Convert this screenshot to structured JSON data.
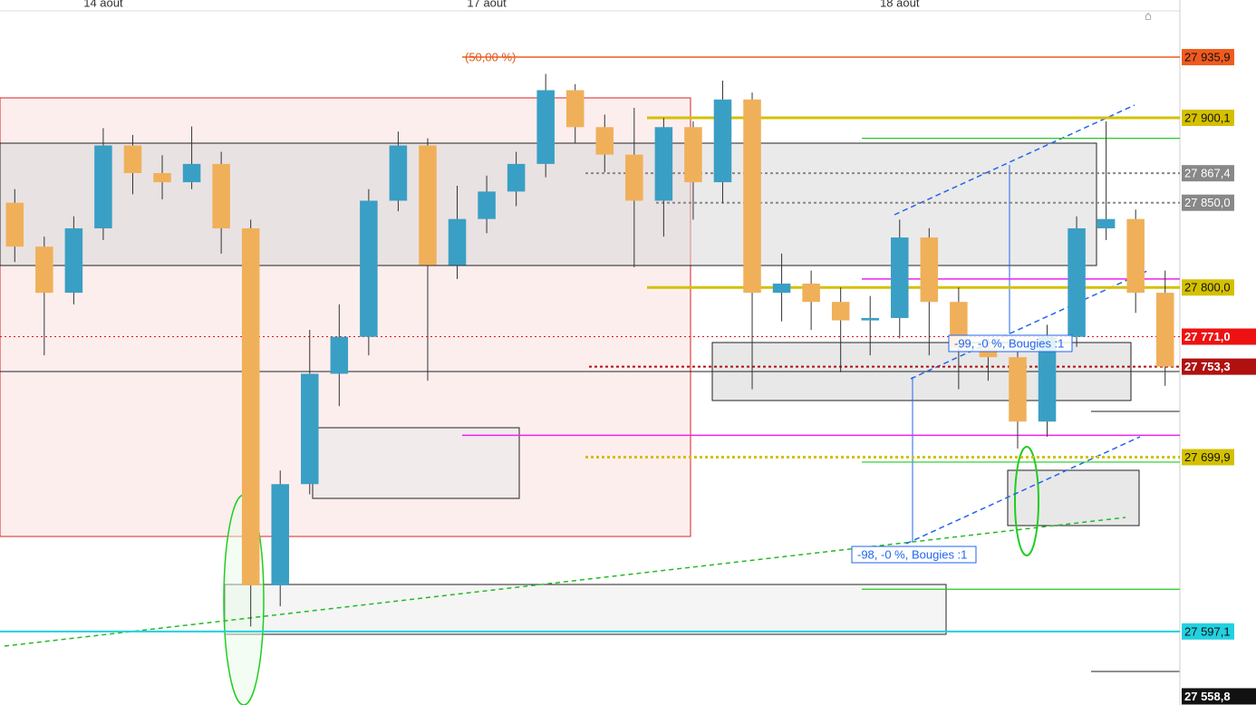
{
  "chart_data": {
    "type": "candlestick",
    "categories": [
      null,
      null,
      null,
      "14 août",
      null,
      null,
      null,
      null,
      null,
      null,
      null,
      null,
      null,
      null,
      null,
      null,
      "17 août",
      null,
      null,
      null,
      null,
      null,
      null,
      null,
      null,
      null,
      null,
      null,
      null,
      null,
      "18 août",
      null,
      null,
      null,
      null,
      null,
      null,
      null,
      null,
      null
    ],
    "ohlc": [
      [
        27850.0,
        27858,
        27815,
        27824.1
      ],
      [
        27824.1,
        27830,
        27760,
        27796.9
      ],
      [
        27796.9,
        27842,
        27790,
        27834.9
      ],
      [
        27834.9,
        27894,
        27828,
        27883.8
      ],
      [
        27883.8,
        27890,
        27855,
        27867.5
      ],
      [
        27867.5,
        27878,
        27852,
        27862.1
      ],
      [
        27862.1,
        27895,
        27858,
        27872.9
      ],
      [
        27872.9,
        27880,
        27820,
        27834.9
      ],
      [
        27834.9,
        27840,
        27600,
        27624.3
      ],
      [
        27624.3,
        27692,
        27612,
        27684.0
      ],
      [
        27684.0,
        27775,
        27678,
        27749.1
      ],
      [
        27749.1,
        27790,
        27730,
        27770.9
      ],
      [
        27770.9,
        27858,
        27760,
        27851.2
      ],
      [
        27851.2,
        27892,
        27845,
        27883.8
      ],
      [
        27883.8,
        27888,
        27745,
        27813.2
      ],
      [
        27813.2,
        27860,
        27805,
        27840.4
      ],
      [
        27840.4,
        27866,
        27832,
        27856.6
      ],
      [
        27856.6,
        27880,
        27848,
        27872.9
      ],
      [
        27872.9,
        27926,
        27865,
        27916.4
      ],
      [
        27916.4,
        27920,
        27885,
        27894.6
      ],
      [
        27894.6,
        27902,
        27868,
        27878.4
      ],
      [
        27878.4,
        27906,
        27812,
        27851.2
      ],
      [
        27851.2,
        27900,
        27830,
        27894.6
      ],
      [
        27894.6,
        27898,
        27840,
        27862.1
      ],
      [
        27862.1,
        27922,
        27850,
        27910.9
      ],
      [
        27910.9,
        27915,
        27740,
        27796.9
      ],
      [
        27796.9,
        27820,
        27780,
        27802.3
      ],
      [
        27802.3,
        27810,
        27775,
        27791.5
      ],
      [
        27791.5,
        27800,
        27750,
        27780.6
      ],
      [
        27780.6,
        27795,
        27760,
        27782.0
      ],
      [
        27782.0,
        27840,
        27770,
        27829.5
      ],
      [
        27829.5,
        27835,
        27760,
        27791.5
      ],
      [
        27791.5,
        27800,
        27740,
        27764.3
      ],
      [
        27764.3,
        27770,
        27745,
        27758.9
      ],
      [
        27758.9,
        27762,
        27705,
        27720.9
      ],
      [
        27720.9,
        27778,
        27712,
        27770.9
      ],
      [
        27770.9,
        27842,
        27765,
        27834.9
      ],
      [
        27834.9,
        27898,
        27828,
        27840.4
      ],
      [
        27840.4,
        27846,
        27785,
        27796.9
      ],
      [
        27796.9,
        27810,
        27742,
        27753.3
      ]
    ],
    "up_color": "#3a9fc4",
    "down_color": "#f0b05a",
    "ylim": [
      27553.7,
      27969.6
    ],
    "levels": [
      {
        "value": 27935.9,
        "label": "27 935,9",
        "color": "#f05a1e"
      },
      {
        "value": 27900.1,
        "label": "27 900,1",
        "color": "#d4c000"
      },
      {
        "value": 27867.4,
        "label": "27 867,4",
        "color": "#888888"
      },
      {
        "value": 27850.0,
        "label": "27 850,0",
        "color": "#888888"
      },
      {
        "value": 27800.0,
        "label": "27 800,0",
        "color": "#d4c000"
      },
      {
        "value": 27771.0,
        "label": "27 771,0",
        "color": "#ee1111"
      },
      {
        "value": 27753.3,
        "label": "27 753,3",
        "color": "#b01010"
      },
      {
        "value": 27699.9,
        "label": "27 699,9",
        "color": "#d4c000"
      },
      {
        "value": 27597.1,
        "label": "27 597,1",
        "color": "#22d0e0"
      },
      {
        "value": 27558.8,
        "label": "27 558,8",
        "color": "#111111"
      }
    ],
    "extra_levels": [
      {
        "value": 27888.0,
        "color": "#22cc22"
      },
      {
        "value": 27805.0,
        "color": "#ee22ee"
      },
      {
        "value": 27712.8,
        "color": "#ee22ee"
      },
      {
        "value": 27697.0,
        "color": "#22cc22"
      },
      {
        "value": 27622.0,
        "color": "#22cc22"
      }
    ],
    "annotations": [
      "(50,00 %)",
      "-99, -0 %, Bougies :1",
      "-98, -0 %, Bougies :1"
    ]
  }
}
